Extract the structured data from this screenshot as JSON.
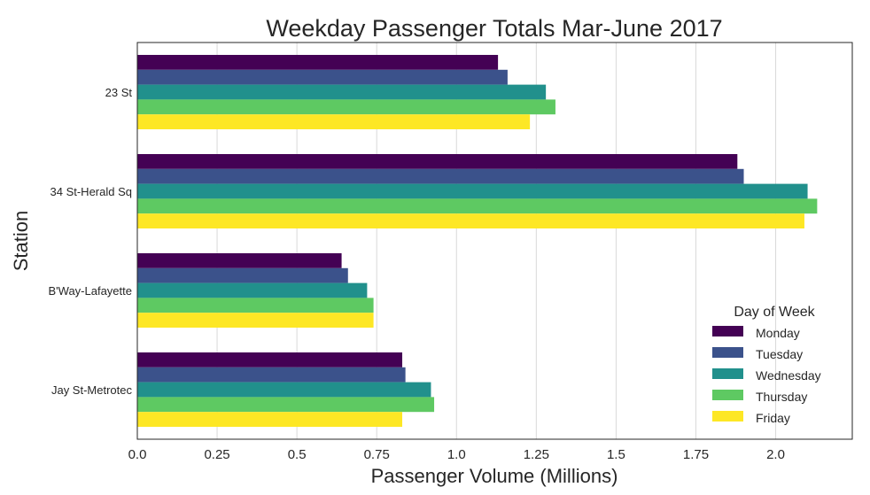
{
  "chart_data": {
    "type": "bar",
    "orientation": "horizontal",
    "title": "Weekday Passenger Totals Mar-June 2017",
    "xlabel": "Passenger Volume (Millions)",
    "ylabel": "Station",
    "xlim": [
      0,
      2.24
    ],
    "xticks": [
      "0.0",
      "0.25",
      "0.5",
      "0.75",
      "1.0",
      "1.25",
      "1.5",
      "1.75",
      "2.0"
    ],
    "grid": "vertical",
    "categories": [
      "23 St",
      "34 St-Herald Sq",
      "B'Way-Lafayette",
      "Jay St-Metrotec"
    ],
    "series": [
      {
        "name": "Monday",
        "color": "#440154",
        "values": [
          1.13,
          1.88,
          0.64,
          0.83
        ]
      },
      {
        "name": "Tuesday",
        "color": "#3b528b",
        "values": [
          1.16,
          1.9,
          0.66,
          0.84
        ]
      },
      {
        "name": "Wednesday",
        "color": "#21908c",
        "values": [
          1.28,
          2.1,
          0.72,
          0.92
        ]
      },
      {
        "name": "Thursday",
        "color": "#5ec962",
        "values": [
          1.31,
          2.13,
          0.74,
          0.93
        ]
      },
      {
        "name": "Friday",
        "color": "#fde725",
        "values": [
          1.23,
          2.09,
          0.74,
          0.83
        ]
      }
    ],
    "legend": {
      "title": "Day of Week",
      "placement": "lower-right"
    }
  }
}
